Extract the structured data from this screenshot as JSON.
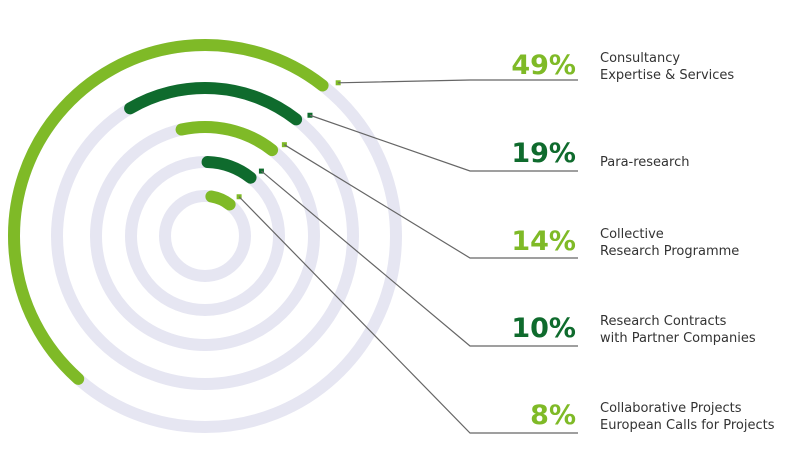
{
  "chart_data": {
    "type": "radial-bar",
    "max": 100,
    "series": [
      {
        "percent_label": "49%",
        "value": 49,
        "lines": [
          "Consultancy",
          "Expertise & Services"
        ],
        "color": "#7fba27"
      },
      {
        "percent_label": "19%",
        "value": 19,
        "lines": [
          "Para-research"
        ],
        "color": "#0f6b2d"
      },
      {
        "percent_label": "14%",
        "value": 14,
        "lines": [
          "Collective",
          "Research Programme"
        ],
        "color": "#7fba27"
      },
      {
        "percent_label": "10%",
        "value": 10,
        "lines": [
          "Research Contracts",
          "with Partner Companies"
        ],
        "color": "#0f6b2d"
      },
      {
        "percent_label": "8%",
        "value": 8,
        "lines": [
          "Collaborative Projects",
          "European Calls for Projects"
        ],
        "color": "#7fba27"
      }
    ],
    "track_color": "#e6e6f2",
    "leader_color": "#666666",
    "label_color": "#333333"
  }
}
